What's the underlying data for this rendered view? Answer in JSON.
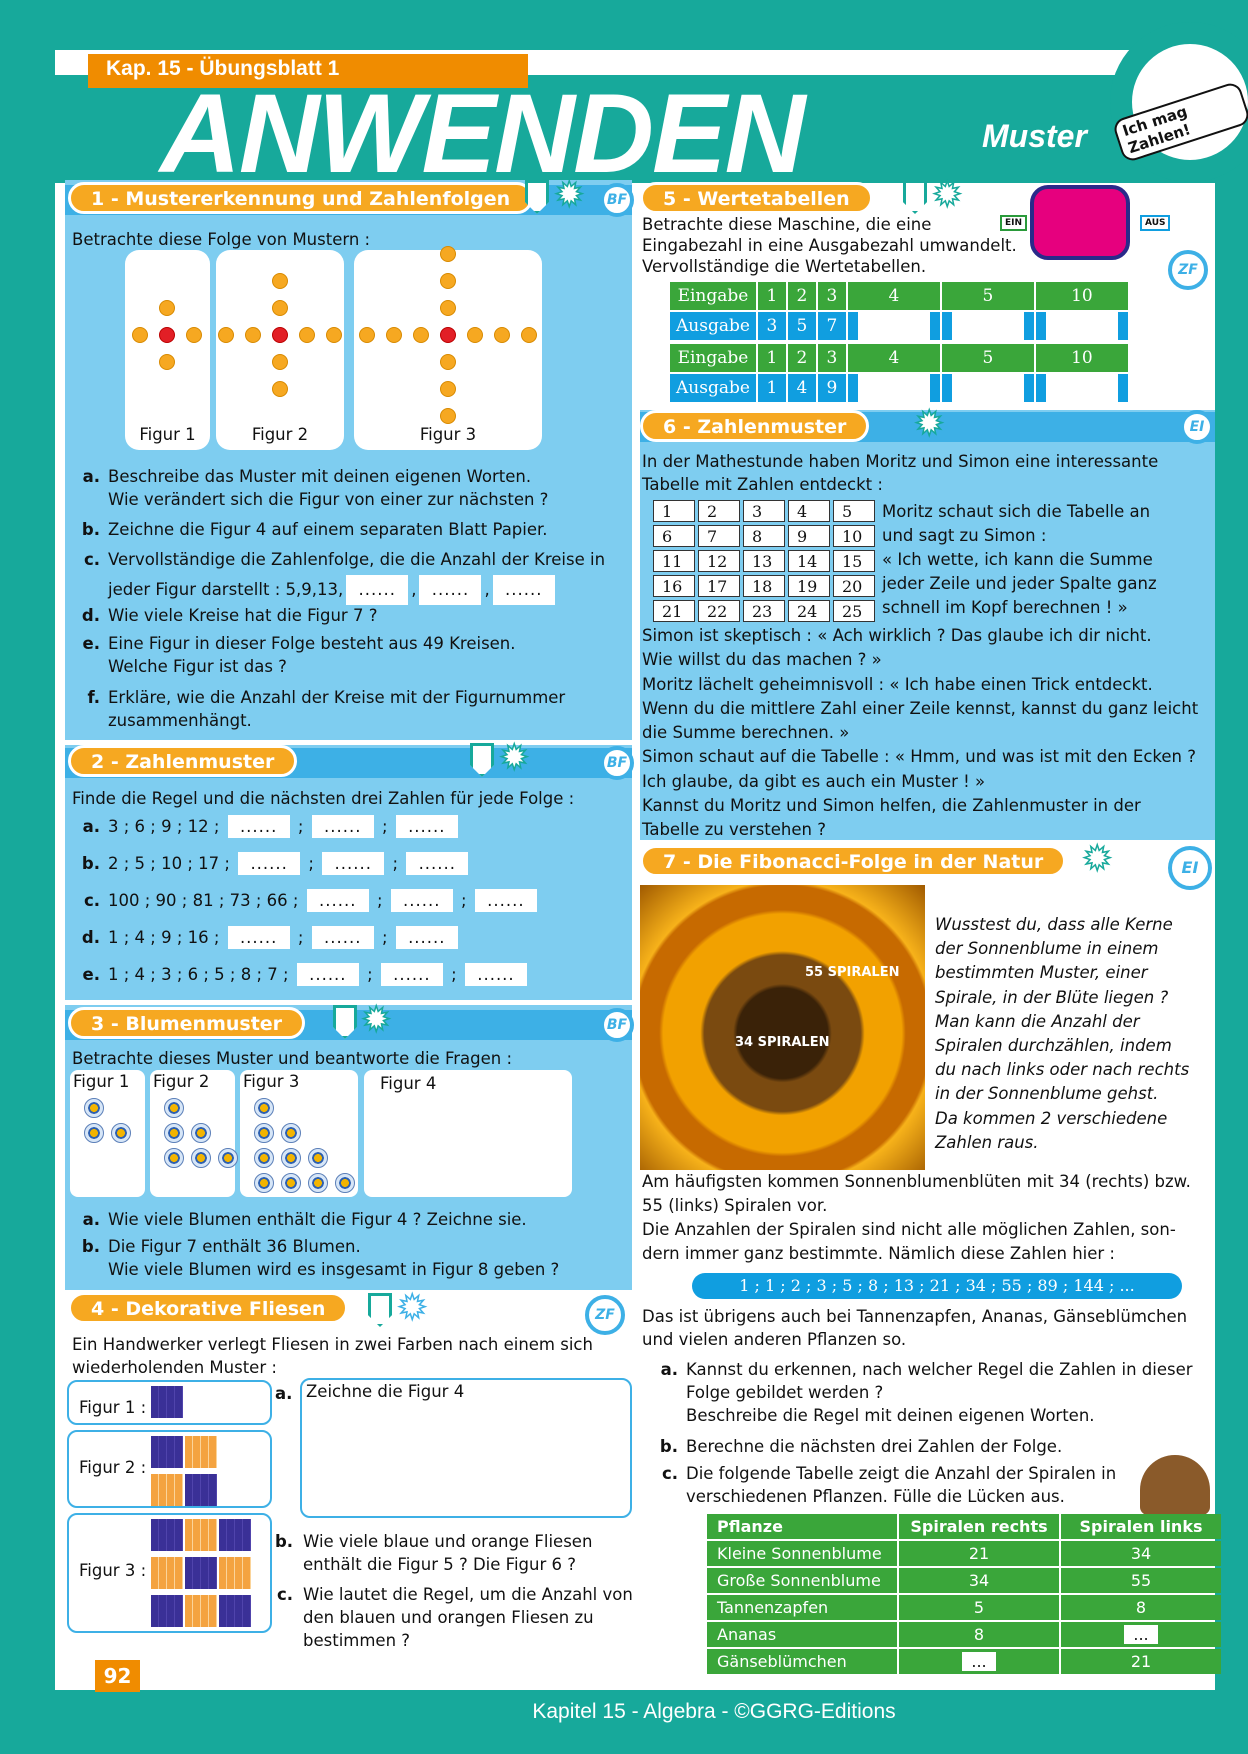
{
  "header": {
    "chapter": "Kap. 15 - Übungsblatt 1",
    "title": "ANWENDEN",
    "topic": "Muster",
    "badge": "Ich mag Zahlen!"
  },
  "footer": {
    "page_number": "92",
    "text": "Kapitel 15 - Algebra - ©GGRG-Editions"
  },
  "colors": {
    "teal": "#17a99b",
    "orange": "#f6a821",
    "light_blue": "#7ecdf0",
    "blue": "#109ee0",
    "green": "#3aa63a"
  },
  "s1": {
    "title": "1 -  Mustererkennung und Zahlenfolgen",
    "code": "BF",
    "intro": "Betrachte diese Folge von Mustern :",
    "figures": [
      "Figur 1",
      "Figur 2",
      "Figur 3"
    ],
    "questions": [
      {
        "l": "a.",
        "t": "Beschreibe das Muster mit deinen eigenen Worten.",
        "t2": "Wie verändert sich die Figur von einer zur nächsten ?"
      },
      {
        "l": "b.",
        "t": "Zeichne die Figur 4 auf einem separaten Blatt Papier."
      },
      {
        "l": "c.",
        "t": "Vervollständige die Zahlenfolge, die die Anzahl der Kreise in",
        "t2": "jeder Figur darstellt : 5,9,13,"
      },
      {
        "l": "d.",
        "t": "Wie viele Kreise hat die Figur 7 ?"
      },
      {
        "l": "e.",
        "t": "Eine Figur in dieser Folge besteht aus 49 Kreisen.",
        "t2": "Welche Figur ist das ?"
      },
      {
        "l": "f.",
        "t": "Erkläre, wie die Anzahl der Kreise mit der Figurnummer",
        "t2": "zusammenhängt."
      }
    ],
    "blank": "......"
  },
  "s2": {
    "title": "2 -  Zahlenmuster",
    "code": "BF",
    "intro": "Finde die Regel und die nächsten drei Zahlen für jede Folge :",
    "rows": [
      {
        "l": "a.",
        "seq": "3 ; 6 ; 9 ; 12 ;"
      },
      {
        "l": "b.",
        "seq": "2 ; 5 ; 10 ; 17 ;"
      },
      {
        "l": "c.",
        "seq": "100 ; 90 ; 81 ; 73 ; 66 ;"
      },
      {
        "l": "d.",
        "seq": "1 ; 4 ; 9 ; 16 ;"
      },
      {
        "l": "e.",
        "seq": "1 ; 4 ; 3 ; 6 ; 5 ; 8 ; 7 ;"
      }
    ],
    "blank": "......",
    "sep": ";"
  },
  "s3": {
    "title": "3 -  Blumenmuster",
    "code": "BF",
    "intro": "Betrachte dieses Muster und beantworte die Fragen :",
    "figures": [
      "Figur 1",
      "Figur 2",
      "Figur 3",
      "Figur 4"
    ],
    "questions": [
      {
        "l": "a.",
        "t": "Wie viele Blumen enthält die Figur 4 ? Zeichne sie."
      },
      {
        "l": "b.",
        "t": "Die Figur 7 enthält 36 Blumen.",
        "t2": "Wie viele Blumen wird es insgesamt in Figur 8 geben ?"
      }
    ]
  },
  "s4": {
    "title": "4 -  Dekorative Fliesen",
    "code": "ZF",
    "intro": "Ein Handwerker verlegt Fliesen in zwei Farben nach einem sich",
    "intro2": "wiederholenden Muster :",
    "figures": [
      "Figur 1 :",
      "Figur 2 :",
      "Figur 3 :"
    ],
    "questions": [
      {
        "l": "a.",
        "t": "Zeichne die Figur 4"
      },
      {
        "l": "b.",
        "t": "Wie viele blaue und orange Fliesen",
        "t2": "enthält die Figur 5 ? Die Figur 6 ?"
      },
      {
        "l": "c.",
        "t": "Wie lautet die Regel, um die Anzahl von",
        "t2": "den blauen und orangen Fliesen zu",
        "t3": "bestimmen ?"
      }
    ]
  },
  "s5": {
    "title": "5 -  Wertetabellen",
    "code": "ZF",
    "intro": [
      "Betrachte diese Maschine, die eine",
      "Eingabezahl in eine Ausgabezahl umwandelt.",
      "Vervollständige die Wertetabellen."
    ],
    "machine_in": "EIN",
    "machine_out": "AUS",
    "tables": [
      {
        "in_label": "Eingabe",
        "out_label": "Ausgabe",
        "inputs": [
          "1",
          "2",
          "3",
          "4",
          "5",
          "10"
        ],
        "outputs": [
          "3",
          "5",
          "7",
          "",
          "",
          ""
        ]
      },
      {
        "in_label": "Eingabe",
        "out_label": "Ausgabe",
        "inputs": [
          "1",
          "2",
          "3",
          "4",
          "5",
          "10"
        ],
        "outputs": [
          "1",
          "4",
          "9",
          "",
          "",
          ""
        ]
      }
    ]
  },
  "s6": {
    "title": "6 -  Zahlenmuster",
    "code": "EI",
    "intro": "In der Mathestunde haben Moritz und Simon eine interessante",
    "intro2": "Tabelle mit Zahlen entdeckt :",
    "grid": [
      [
        "1",
        "2",
        "3",
        "4",
        "5"
      ],
      [
        "6",
        "7",
        "8",
        "9",
        "10"
      ],
      [
        "11",
        "12",
        "13",
        "14",
        "15"
      ],
      [
        "16",
        "17",
        "18",
        "19",
        "20"
      ],
      [
        "21",
        "22",
        "23",
        "24",
        "25"
      ]
    ],
    "side": [
      "Moritz schaut sich die Tabelle an",
      "und sagt zu Simon :",
      "« Ich wette, ich kann die Summe",
      "jeder Zeile und jeder Spalte ganz",
      "schnell im Kopf berechnen ! »"
    ],
    "text": [
      " Simon ist skeptisch : « Ach wirklich ? Das glaube ich dir nicht.",
      "Wie willst du das machen ? »",
      "Moritz lächelt geheimnisvoll : « Ich habe einen Trick entdeckt.",
      "Wenn du die mittlere Zahl einer Zeile kennst, kannst du ganz leicht",
      "die Summe berechnen. »",
      "Simon schaut auf die Tabelle : « Hmm, und was ist mit den Ecken ?",
      "Ich glaube, da gibt es auch ein Muster ! »",
      "Kannst du Moritz und Simon helfen, die Zahlenmuster in der",
      "Tabelle zu verstehen ?"
    ]
  },
  "s7": {
    "title": "7 -  Die Fibonacci-Folge in der Natur",
    "code": "EI",
    "image_labels": [
      "55 SPIRALEN",
      "34 SPIRALEN"
    ],
    "side": [
      "Wusstest du, dass alle Kerne",
      "der Sonnenblume in einem",
      "bestimmten Muster, einer",
      "Spirale, in der Blüte liegen ?",
      "Man kann die Anzahl der",
      "Spiralen durchzählen, indem",
      "du nach links oder nach rechts",
      "in der Sonnenblume gehst.",
      "Da kommen 2 verschiedene",
      "Zahlen raus."
    ],
    "text": [
      "Am häufigsten kommen Sonnenblumenblüten mit 34 (rechts) bzw.",
      "55 (links) Spiralen vor.",
      "Die Anzahlen der Spiralen sind nicht alle möglichen Zahlen, son-",
      "dern immer ganz bestimmte. Nämlich diese Zahlen hier :"
    ],
    "sequence": "1 ; 1 ; 2 ; 3 ; 5 ; 8 ; 13 ; 21 ; 34 ; 55 ; 89 ; 144 ; ...",
    "text2": [
      "Das ist übrigens auch bei Tannenzapfen, Ananas, Gänseblümchen",
      "und vielen anderen Pflanzen so."
    ],
    "questions": [
      {
        "l": "a.",
        "t": "Kannst du erkennen, nach welcher Regel die Zahlen in dieser",
        "t2": "Folge gebildet werden ?",
        "t3": "Beschreibe die Regel mit deinen eigenen Worten."
      },
      {
        "l": "b.",
        "t": "Berechne die nächsten drei Zahlen der Folge."
      },
      {
        "l": "c.",
        "t": "Die folgende Tabelle zeigt die Anzahl der Spiralen in",
        "t2": "verschiedenen Pflanzen. Fülle die Lücken aus."
      }
    ],
    "table": {
      "headers": [
        "Pflanze",
        "Spiralen rechts",
        "Spiralen links"
      ],
      "rows": [
        [
          "Kleine Sonnenblume",
          "21",
          "34"
        ],
        [
          "Große Sonnenblume",
          "34",
          "55"
        ],
        [
          "Tannenzapfen",
          "5",
          "8"
        ],
        [
          "Ananas",
          "8",
          "..."
        ],
        [
          "Gänseblümchen",
          "...",
          "21"
        ]
      ]
    }
  }
}
